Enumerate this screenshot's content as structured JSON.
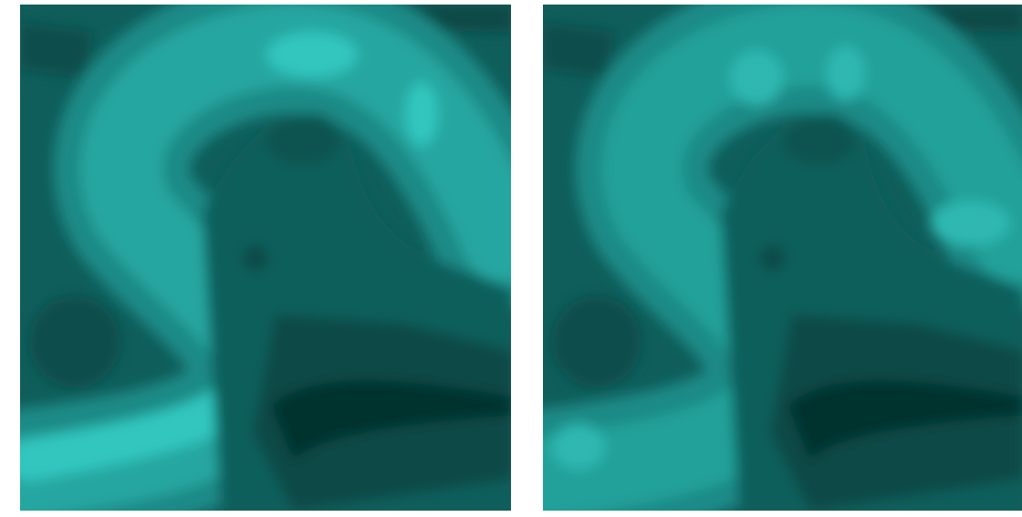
{
  "chart_data": [
    {
      "type": "contour"
    },
    {
      "type": "contour"
    }
  ]
}
